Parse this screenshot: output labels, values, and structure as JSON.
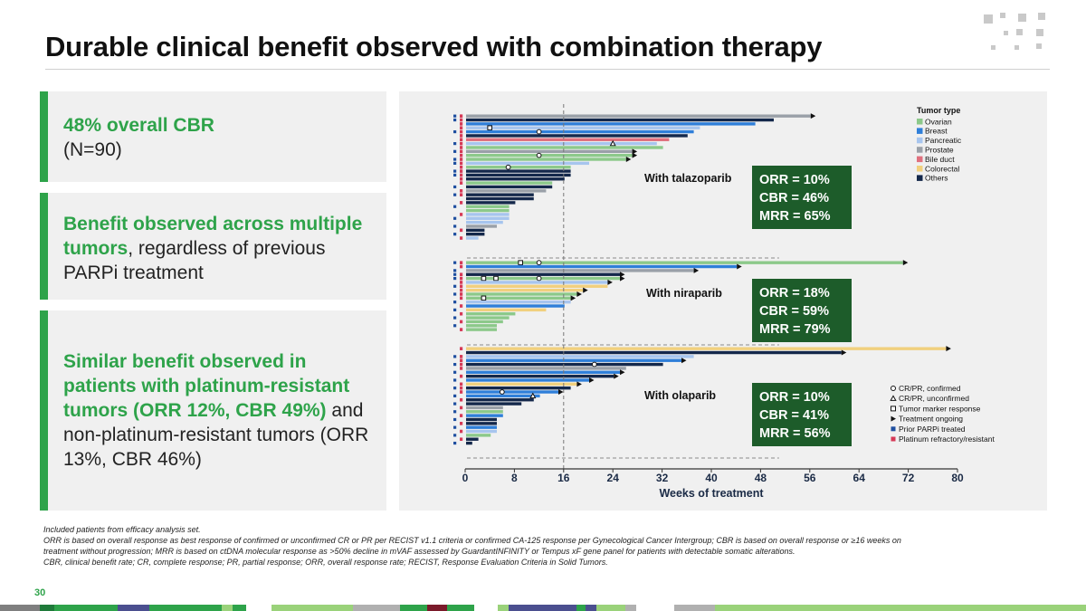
{
  "slide": {
    "title": "Durable clinical benefit observed with combination therapy",
    "page_number": "30"
  },
  "panels": [
    {
      "highlight": "48% overall CBR",
      "body": "(N=90)"
    },
    {
      "highlight": "Benefit observed across multiple tumors",
      "body": ", regardless of previous PARPi treatment"
    },
    {
      "highlight": "Similar benefit observed in patients with platinum-resistant tumors (ORR 12%, CBR 49%)",
      "body": "and non-platinum-resistant tumors (ORR 13%, CBR 46%)"
    }
  ],
  "footnotes": [
    "Included patients from efficacy analysis set.",
    "ORR is based on overall response as best response of confirmed or unconfirmed CR or PR per RECIST v1.1 criteria or confirmed CA-125 response per Gynecological Cancer Intergroup; CBR is based on overall response or ≥16 weeks on treatment without progression; MRR is based on ctDNA molecular response as >50% decline in mVAF assessed by GuardantINFINITY or Tempus xF gene panel for patients with detectable somatic alterations.",
    "CBR, clinical benefit rate; CR, complete response; PR, partial response; ORR, overall response rate; RECIST, Response Evaluation Criteria in Solid Tumors."
  ],
  "colors": {
    "accent_green": "#2ea34a",
    "panel_bg": "#f0f0f0",
    "stat_box_bg": "#1d5c2a"
  },
  "chart_data": {
    "type": "bar",
    "orientation": "horizontal",
    "xlabel": "Weeks of treatment",
    "x_ticks": [
      0,
      8,
      16,
      24,
      32,
      40,
      48,
      56,
      64,
      72,
      80
    ],
    "xlim": [
      0,
      80
    ],
    "reference_line_weeks": 16,
    "legend_title": "Tumor type",
    "tumor_types": [
      {
        "key": "ovarian",
        "label": "Ovarian",
        "color": "#8cc98a"
      },
      {
        "key": "breast",
        "label": "Breast",
        "color": "#2f7fd9"
      },
      {
        "key": "pancreatic",
        "label": "Pancreatic",
        "color": "#a7c5ee"
      },
      {
        "key": "prostate",
        "label": "Prostate",
        "color": "#9aa0a8"
      },
      {
        "key": "bile",
        "label": "Bile duct",
        "color": "#e0707e"
      },
      {
        "key": "colorectal",
        "label": "Colorectal",
        "color": "#f1d07e"
      },
      {
        "key": "others",
        "label": "Others",
        "color": "#14284b"
      }
    ],
    "symbol_legend": [
      {
        "symbol": "circle",
        "label": "CR/PR, confirmed"
      },
      {
        "symbol": "triangle",
        "label": "CR/PR, unconfirmed"
      },
      {
        "symbol": "square",
        "label": "Tumor marker response"
      },
      {
        "symbol": "arrow",
        "label": "Treatment ongoing"
      },
      {
        "symbol": "blue-square",
        "label": "Prior PARPi treated"
      },
      {
        "symbol": "red-square",
        "label": "Platinum refractory/resistant"
      }
    ],
    "groups": [
      {
        "name": "With talazoparib",
        "stats": [
          "ORR = 10%",
          "CBR = 46%",
          "MRR = 65%"
        ],
        "bars": [
          {
            "weeks": 56,
            "tumor": "prostate",
            "ongoing": true,
            "prior_parpi": true,
            "plat_res": true
          },
          {
            "weeks": 50,
            "tumor": "others",
            "ongoing": false,
            "prior_parpi": true,
            "plat_res": true
          },
          {
            "weeks": 47,
            "tumor": "breast",
            "ongoing": false,
            "prior_parpi": false,
            "plat_res": true
          },
          {
            "weeks": 38,
            "tumor": "pancreatic",
            "ongoing": false,
            "prior_parpi": false,
            "plat_res": true,
            "marker": "square",
            "marker_weeks": 4
          },
          {
            "weeks": 37,
            "tumor": "breast",
            "ongoing": false,
            "prior_parpi": true,
            "plat_res": true,
            "marker": "circle",
            "marker_weeks": 12
          },
          {
            "weeks": 36,
            "tumor": "others",
            "ongoing": false,
            "prior_parpi": false,
            "plat_res": true
          },
          {
            "weeks": 33,
            "tumor": "bile",
            "ongoing": false,
            "prior_parpi": false,
            "plat_res": true
          },
          {
            "weeks": 31,
            "tumor": "pancreatic",
            "ongoing": false,
            "prior_parpi": true,
            "plat_res": true,
            "marker": "triangle",
            "marker_weeks": 24
          },
          {
            "weeks": 32,
            "tumor": "ovarian",
            "ongoing": false,
            "prior_parpi": false,
            "plat_res": true
          },
          {
            "weeks": 27,
            "tumor": "prostate",
            "ongoing": true,
            "prior_parpi": true,
            "plat_res": true
          },
          {
            "weeks": 27,
            "tumor": "ovarian",
            "ongoing": true,
            "prior_parpi": false,
            "plat_res": true,
            "marker": "circle",
            "marker_weeks": 12
          },
          {
            "weeks": 26,
            "tumor": "ovarian",
            "ongoing": true,
            "prior_parpi": true,
            "plat_res": true
          },
          {
            "weeks": 20,
            "tumor": "pancreatic",
            "ongoing": false,
            "prior_parpi": true,
            "plat_res": true
          },
          {
            "weeks": 17,
            "tumor": "ovarian",
            "ongoing": false,
            "prior_parpi": false,
            "plat_res": true,
            "marker": "circle",
            "marker_weeks": 7
          },
          {
            "weeks": 17,
            "tumor": "others",
            "ongoing": false,
            "prior_parpi": true,
            "plat_res": true
          },
          {
            "weeks": 17,
            "tumor": "others",
            "ongoing": false,
            "prior_parpi": true,
            "plat_res": true
          },
          {
            "weeks": 16,
            "tumor": "others",
            "ongoing": false,
            "prior_parpi": false,
            "plat_res": true
          },
          {
            "weeks": 14,
            "tumor": "ovarian",
            "ongoing": false,
            "prior_parpi": false,
            "plat_res": true
          },
          {
            "weeks": 14,
            "tumor": "others",
            "ongoing": false,
            "prior_parpi": true,
            "plat_res": false
          },
          {
            "weeks": 13,
            "tumor": "prostate",
            "ongoing": false,
            "prior_parpi": false,
            "plat_res": true
          },
          {
            "weeks": 11,
            "tumor": "others",
            "ongoing": false,
            "prior_parpi": true,
            "plat_res": true
          },
          {
            "weeks": 11,
            "tumor": "others",
            "ongoing": false,
            "prior_parpi": false,
            "plat_res": false
          },
          {
            "weeks": 8,
            "tumor": "others",
            "ongoing": false,
            "prior_parpi": false,
            "plat_res": true
          },
          {
            "weeks": 7,
            "tumor": "ovarian",
            "ongoing": false,
            "prior_parpi": true,
            "plat_res": false
          },
          {
            "weeks": 7,
            "tumor": "ovarian",
            "ongoing": false,
            "prior_parpi": false,
            "plat_res": false
          },
          {
            "weeks": 7,
            "tumor": "pancreatic",
            "ongoing": false,
            "prior_parpi": false,
            "plat_res": true
          },
          {
            "weeks": 7,
            "tumor": "pancreatic",
            "ongoing": false,
            "prior_parpi": true,
            "plat_res": false
          },
          {
            "weeks": 6,
            "tumor": "pancreatic",
            "ongoing": false,
            "prior_parpi": false,
            "plat_res": false
          },
          {
            "weeks": 5,
            "tumor": "prostate",
            "ongoing": false,
            "prior_parpi": true,
            "plat_res": false
          },
          {
            "weeks": 3,
            "tumor": "others",
            "ongoing": false,
            "prior_parpi": false,
            "plat_res": true
          },
          {
            "weeks": 3,
            "tumor": "others",
            "ongoing": false,
            "prior_parpi": true,
            "plat_res": false
          },
          {
            "weeks": 2,
            "tumor": "pancreatic",
            "ongoing": false,
            "prior_parpi": false,
            "plat_res": true
          }
        ]
      },
      {
        "name": "With niraparib",
        "stats": [
          "ORR = 18%",
          "CBR = 59%",
          "MRR = 79%"
        ],
        "bars": [
          {
            "weeks": 71,
            "tumor": "ovarian",
            "ongoing": true,
            "prior_parpi": true,
            "plat_res": true,
            "marker": "square",
            "marker_weeks": 9,
            "marker2": "circle",
            "marker2_weeks": 12
          },
          {
            "weeks": 44,
            "tumor": "breast",
            "ongoing": true,
            "prior_parpi": false,
            "plat_res": true
          },
          {
            "weeks": 37,
            "tumor": "prostate",
            "ongoing": true,
            "prior_parpi": true,
            "plat_res": false
          },
          {
            "weeks": 25,
            "tumor": "others",
            "ongoing": true,
            "prior_parpi": true,
            "plat_res": true
          },
          {
            "weeks": 25,
            "tumor": "ovarian",
            "ongoing": true,
            "prior_parpi": true,
            "plat_res": true,
            "marker": "square",
            "marker_weeks": 5,
            "marker2": "square",
            "marker2_weeks": 3,
            "marker3": "circle",
            "marker3_weeks": 12
          },
          {
            "weeks": 23,
            "tumor": "pancreatic",
            "ongoing": true,
            "prior_parpi": false,
            "plat_res": true
          },
          {
            "weeks": 23,
            "tumor": "colorectal",
            "ongoing": false,
            "prior_parpi": true,
            "plat_res": true
          },
          {
            "weeks": 19,
            "tumor": "colorectal",
            "ongoing": true,
            "prior_parpi": false,
            "plat_res": true
          },
          {
            "weeks": 18,
            "tumor": "ovarian",
            "ongoing": true,
            "prior_parpi": true,
            "plat_res": true
          },
          {
            "weeks": 17,
            "tumor": "ovarian",
            "ongoing": true,
            "prior_parpi": false,
            "plat_res": true,
            "marker": "square",
            "marker_weeks": 3
          },
          {
            "weeks": 17,
            "tumor": "pancreatic",
            "ongoing": false,
            "prior_parpi": true,
            "plat_res": false
          },
          {
            "weeks": 16,
            "tumor": "breast",
            "ongoing": false,
            "prior_parpi": false,
            "plat_res": true
          },
          {
            "weeks": 13,
            "tumor": "colorectal",
            "ongoing": false,
            "prior_parpi": true,
            "plat_res": false
          },
          {
            "weeks": 8,
            "tumor": "ovarian",
            "ongoing": false,
            "prior_parpi": false,
            "plat_res": true
          },
          {
            "weeks": 7,
            "tumor": "ovarian",
            "ongoing": false,
            "prior_parpi": true,
            "plat_res": false
          },
          {
            "weeks": 6,
            "tumor": "ovarian",
            "ongoing": false,
            "prior_parpi": false,
            "plat_res": true
          },
          {
            "weeks": 5,
            "tumor": "ovarian",
            "ongoing": false,
            "prior_parpi": true,
            "plat_res": false
          },
          {
            "weeks": 5,
            "tumor": "ovarian",
            "ongoing": false,
            "prior_parpi": false,
            "plat_res": true
          }
        ]
      },
      {
        "name": "With olaparib",
        "stats": [
          "ORR = 10%",
          "CBR = 41%",
          "MRR = 56%"
        ],
        "bars": [
          {
            "weeks": 78,
            "tumor": "colorectal",
            "ongoing": true,
            "prior_parpi": false,
            "plat_res": true
          },
          {
            "weeks": 61,
            "tumor": "others",
            "ongoing": true,
            "prior_parpi": false,
            "plat_res": false
          },
          {
            "weeks": 37,
            "tumor": "pancreatic",
            "ongoing": false,
            "prior_parpi": true,
            "plat_res": true
          },
          {
            "weeks": 35,
            "tumor": "breast",
            "ongoing": true,
            "prior_parpi": false,
            "plat_res": true
          },
          {
            "weeks": 32,
            "tumor": "others",
            "ongoing": false,
            "prior_parpi": true,
            "plat_res": true,
            "marker": "circle",
            "marker_weeks": 21
          },
          {
            "weeks": 26,
            "tumor": "prostate",
            "ongoing": false,
            "prior_parpi": false,
            "plat_res": true
          },
          {
            "weeks": 25,
            "tumor": "breast",
            "ongoing": true,
            "prior_parpi": true,
            "plat_res": false
          },
          {
            "weeks": 24,
            "tumor": "others",
            "ongoing": true,
            "prior_parpi": false,
            "plat_res": true
          },
          {
            "weeks": 20,
            "tumor": "breast",
            "ongoing": true,
            "prior_parpi": true,
            "plat_res": false
          },
          {
            "weeks": 18,
            "tumor": "colorectal",
            "ongoing": true,
            "prior_parpi": false,
            "plat_res": true
          },
          {
            "weeks": 17,
            "tumor": "others",
            "ongoing": false,
            "prior_parpi": true,
            "plat_res": true
          },
          {
            "weeks": 15,
            "tumor": "breast",
            "ongoing": true,
            "prior_parpi": false,
            "plat_res": true,
            "marker": "circle",
            "marker_weeks": 6
          },
          {
            "weeks": 12,
            "tumor": "breast",
            "ongoing": false,
            "prior_parpi": true,
            "plat_res": false,
            "marker": "triangle",
            "marker_weeks": 11
          },
          {
            "weeks": 11,
            "tumor": "others",
            "ongoing": false,
            "prior_parpi": false,
            "plat_res": true
          },
          {
            "weeks": 9,
            "tumor": "others",
            "ongoing": false,
            "prior_parpi": true,
            "plat_res": false
          },
          {
            "weeks": 6,
            "tumor": "prostate",
            "ongoing": false,
            "prior_parpi": false,
            "plat_res": true
          },
          {
            "weeks": 6,
            "tumor": "ovarian",
            "ongoing": false,
            "prior_parpi": true,
            "plat_res": false
          },
          {
            "weeks": 6,
            "tumor": "breast",
            "ongoing": false,
            "prior_parpi": false,
            "plat_res": true
          },
          {
            "weeks": 5,
            "tumor": "others",
            "ongoing": false,
            "prior_parpi": true,
            "plat_res": false
          },
          {
            "weeks": 5,
            "tumor": "others",
            "ongoing": false,
            "prior_parpi": false,
            "plat_res": true
          },
          {
            "weeks": 5,
            "tumor": "breast",
            "ongoing": false,
            "prior_parpi": true,
            "plat_res": false
          },
          {
            "weeks": 5,
            "tumor": "pancreatic",
            "ongoing": false,
            "prior_parpi": false,
            "plat_res": true
          },
          {
            "weeks": 4,
            "tumor": "ovarian",
            "ongoing": false,
            "prior_parpi": true,
            "plat_res": false
          },
          {
            "weeks": 2,
            "tumor": "others",
            "ongoing": false,
            "prior_parpi": false,
            "plat_res": true
          },
          {
            "weeks": 1,
            "tumor": "others",
            "ongoing": false,
            "prior_parpi": true,
            "plat_res": false
          }
        ]
      }
    ]
  }
}
